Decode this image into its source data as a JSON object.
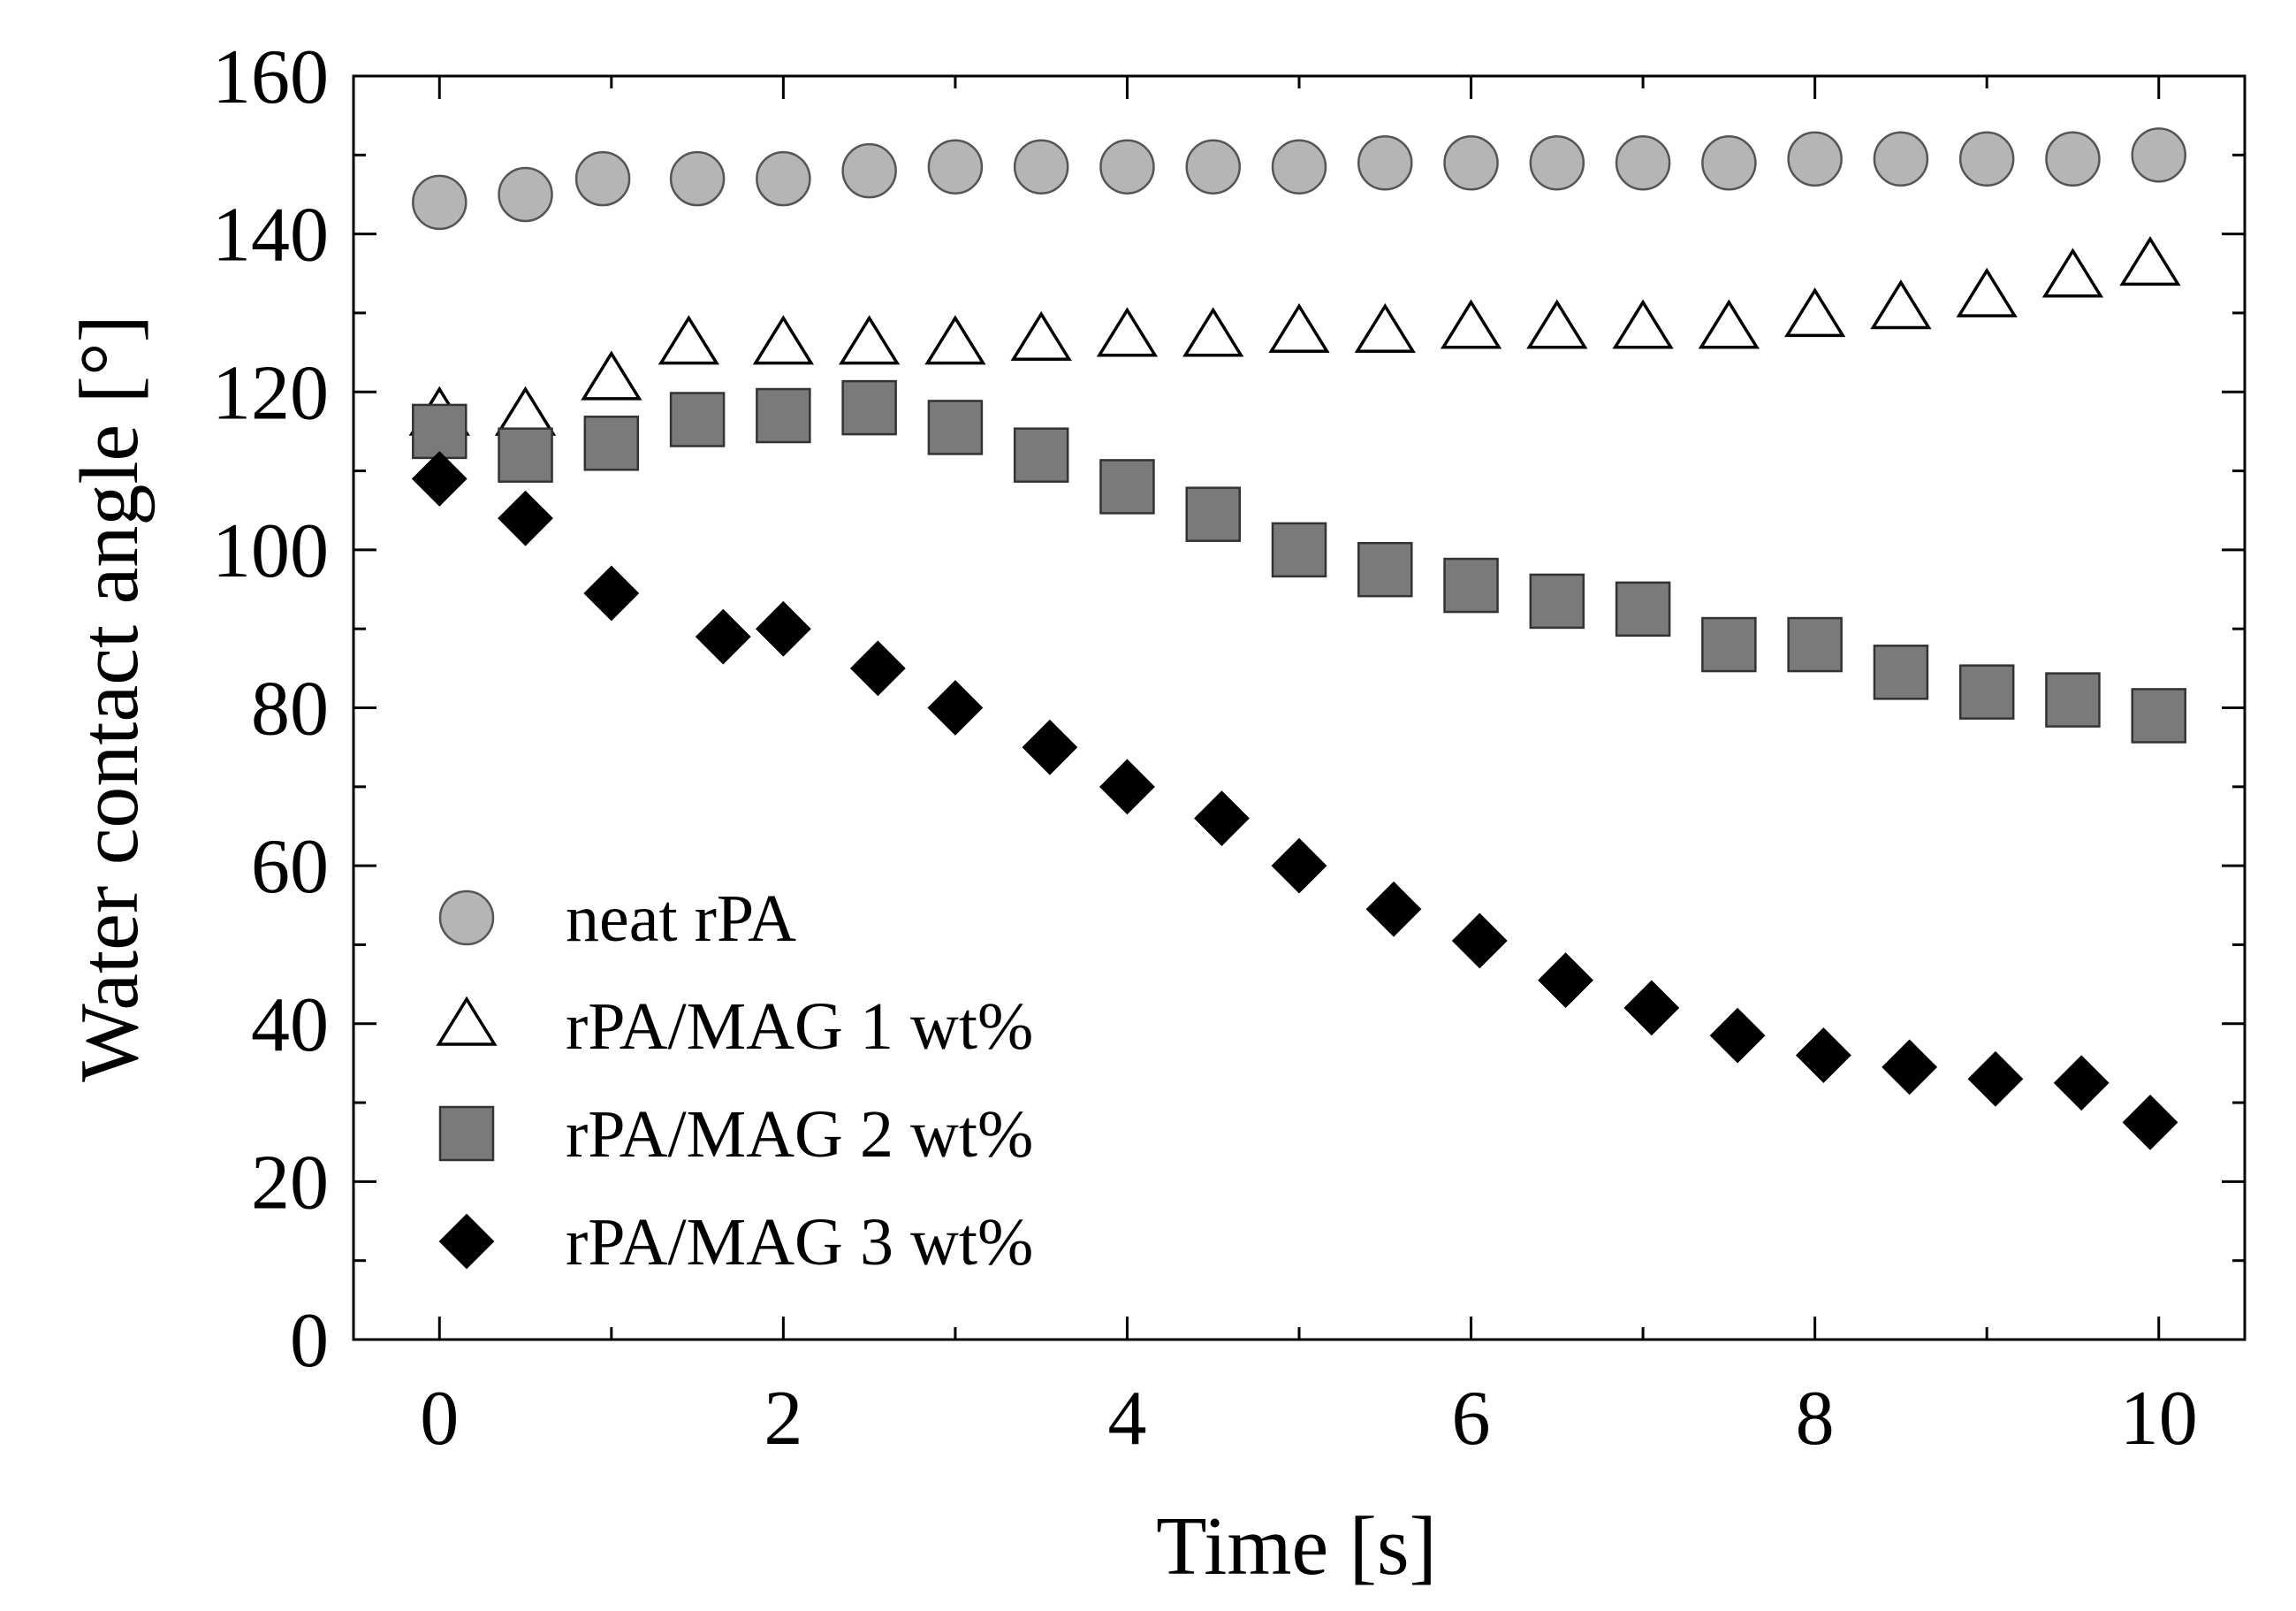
{
  "chart_data": {
    "type": "scatter",
    "title": "",
    "xlabel": "Time [s]",
    "ylabel": "Water contact angle [°]",
    "xlim": [
      -0.5,
      10.5
    ],
    "ylim": [
      0,
      160
    ],
    "x_ticks": [
      0,
      2,
      4,
      6,
      8,
      10
    ],
    "x_tick_labels": [
      "0",
      "2",
      "4",
      "6",
      "8",
      "10"
    ],
    "y_ticks": [
      0,
      20,
      40,
      60,
      80,
      100,
      120,
      140,
      160
    ],
    "y_tick_labels": [
      "0",
      "20",
      "40",
      "60",
      "80",
      "100",
      "120",
      "140",
      "160"
    ],
    "grid": false,
    "legend_position": "bottom-left",
    "series": [
      {
        "name": "neat rPA",
        "marker": "circle",
        "fill": "#b5b5b5",
        "stroke": "#555555",
        "x": [
          0,
          0.5,
          0.95,
          1.5,
          2.0,
          2.5,
          3.0,
          3.5,
          4.0,
          4.5,
          5.0,
          5.5,
          6.0,
          6.5,
          7.0,
          7.5,
          8.0,
          8.5,
          9.0,
          9.5,
          10.0
        ],
        "y": [
          144,
          145,
          147,
          147,
          147,
          148,
          148.5,
          148.5,
          148.5,
          148.5,
          148.5,
          149,
          149,
          149,
          149,
          149,
          149.5,
          149.5,
          149.5,
          149.5,
          150
        ]
      },
      {
        "name": "rPA/MAG 1 wt%",
        "marker": "triangle",
        "fill": "#ffffff",
        "stroke": "#000000",
        "x": [
          0,
          0.5,
          1.0,
          1.45,
          2.0,
          2.5,
          3.0,
          3.5,
          4.0,
          4.5,
          5.0,
          5.5,
          6.0,
          6.5,
          7.0,
          7.5,
          8.0,
          8.5,
          9.0,
          9.5,
          9.95
        ],
        "y": [
          117,
          117,
          121.5,
          126,
          126,
          126,
          126,
          126.5,
          127,
          127,
          127.5,
          127.5,
          128,
          128,
          128,
          128,
          129.5,
          130.5,
          132,
          134.5,
          136
        ]
      },
      {
        "name": "rPA/MAG 2 wt%",
        "marker": "square",
        "fill": "#7a7a7a",
        "stroke": "#333333",
        "x": [
          0,
          0.5,
          1.0,
          1.5,
          2.0,
          2.5,
          3.0,
          3.5,
          4.0,
          4.5,
          5.0,
          5.5,
          6.0,
          6.5,
          7.0,
          7.5,
          8.0,
          8.5,
          9.0,
          9.5,
          10.0
        ],
        "y": [
          115,
          112,
          113.5,
          116.5,
          117,
          118,
          115.5,
          112,
          108,
          104.5,
          100,
          97.5,
          95.5,
          93.5,
          92.5,
          88,
          88,
          84.5,
          82,
          81,
          79
        ]
      },
      {
        "name": "rPA/MAG 3 wt%",
        "marker": "diamond",
        "fill": "#000000",
        "stroke": "#000000",
        "x": [
          0,
          0.5,
          1.0,
          1.65,
          2.0,
          2.55,
          3.0,
          3.55,
          4.0,
          4.55,
          5.0,
          5.55,
          6.05,
          6.55,
          7.05,
          7.55,
          8.05,
          8.55,
          9.05,
          9.55,
          9.95
        ],
        "y": [
          109,
          104,
          94.5,
          89,
          90,
          85,
          80,
          75,
          70,
          66,
          60,
          54.5,
          50.5,
          45.5,
          42,
          38.5,
          36,
          34.5,
          33,
          32.5,
          27.5
        ]
      }
    ]
  }
}
